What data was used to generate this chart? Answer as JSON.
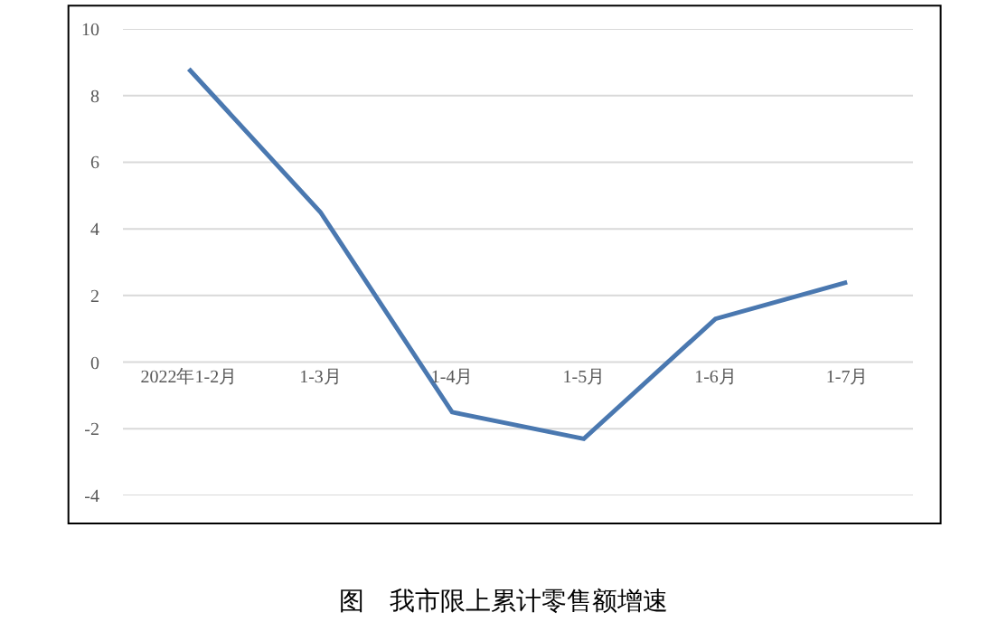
{
  "chart_data": {
    "type": "line",
    "title": "图　我市限上累计零售额增速",
    "categories": [
      "2022年1-2月",
      "1-3月",
      "1-4月",
      "1-5月",
      "1-6月",
      "1-7月"
    ],
    "series": [
      {
        "color": "#4a78b0",
        "values": [
          8.8,
          4.5,
          -1.5,
          -2.3,
          1.3,
          2.4
        ]
      }
    ],
    "ylim": [
      -4,
      10
    ],
    "yticks": [
      -4,
      -2,
      0,
      2,
      4,
      6,
      8,
      10
    ],
    "grid": "y",
    "marker": "none",
    "line_style": "solid"
  }
}
